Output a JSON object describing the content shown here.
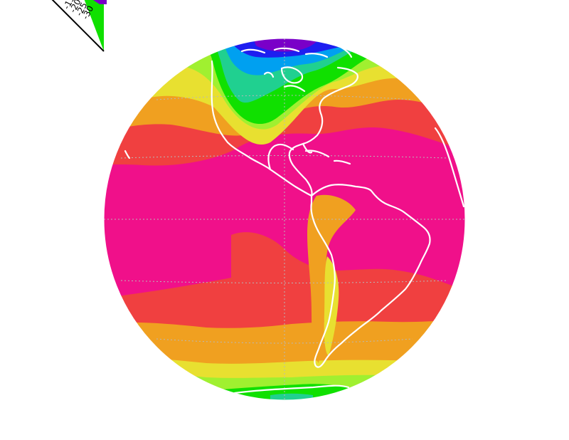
{
  "map": {
    "projection": "orthographic",
    "field_palette": [
      "#7a00c8",
      "#1e1ef0",
      "#00a0f0",
      "#20d090",
      "#10e000",
      "#a0f030",
      "#e8e030",
      "#f0a020",
      "#f04040",
      "#f0108a"
    ],
    "coastline_color": "#ffffff",
    "graticule_color": "#b8b8b8"
  },
  "colorbar": {
    "colors": [
      "#7a00c8",
      "#10e000"
    ],
    "tick_labels": [
      "-15",
      "-20",
      "-25",
      "-30"
    ]
  }
}
